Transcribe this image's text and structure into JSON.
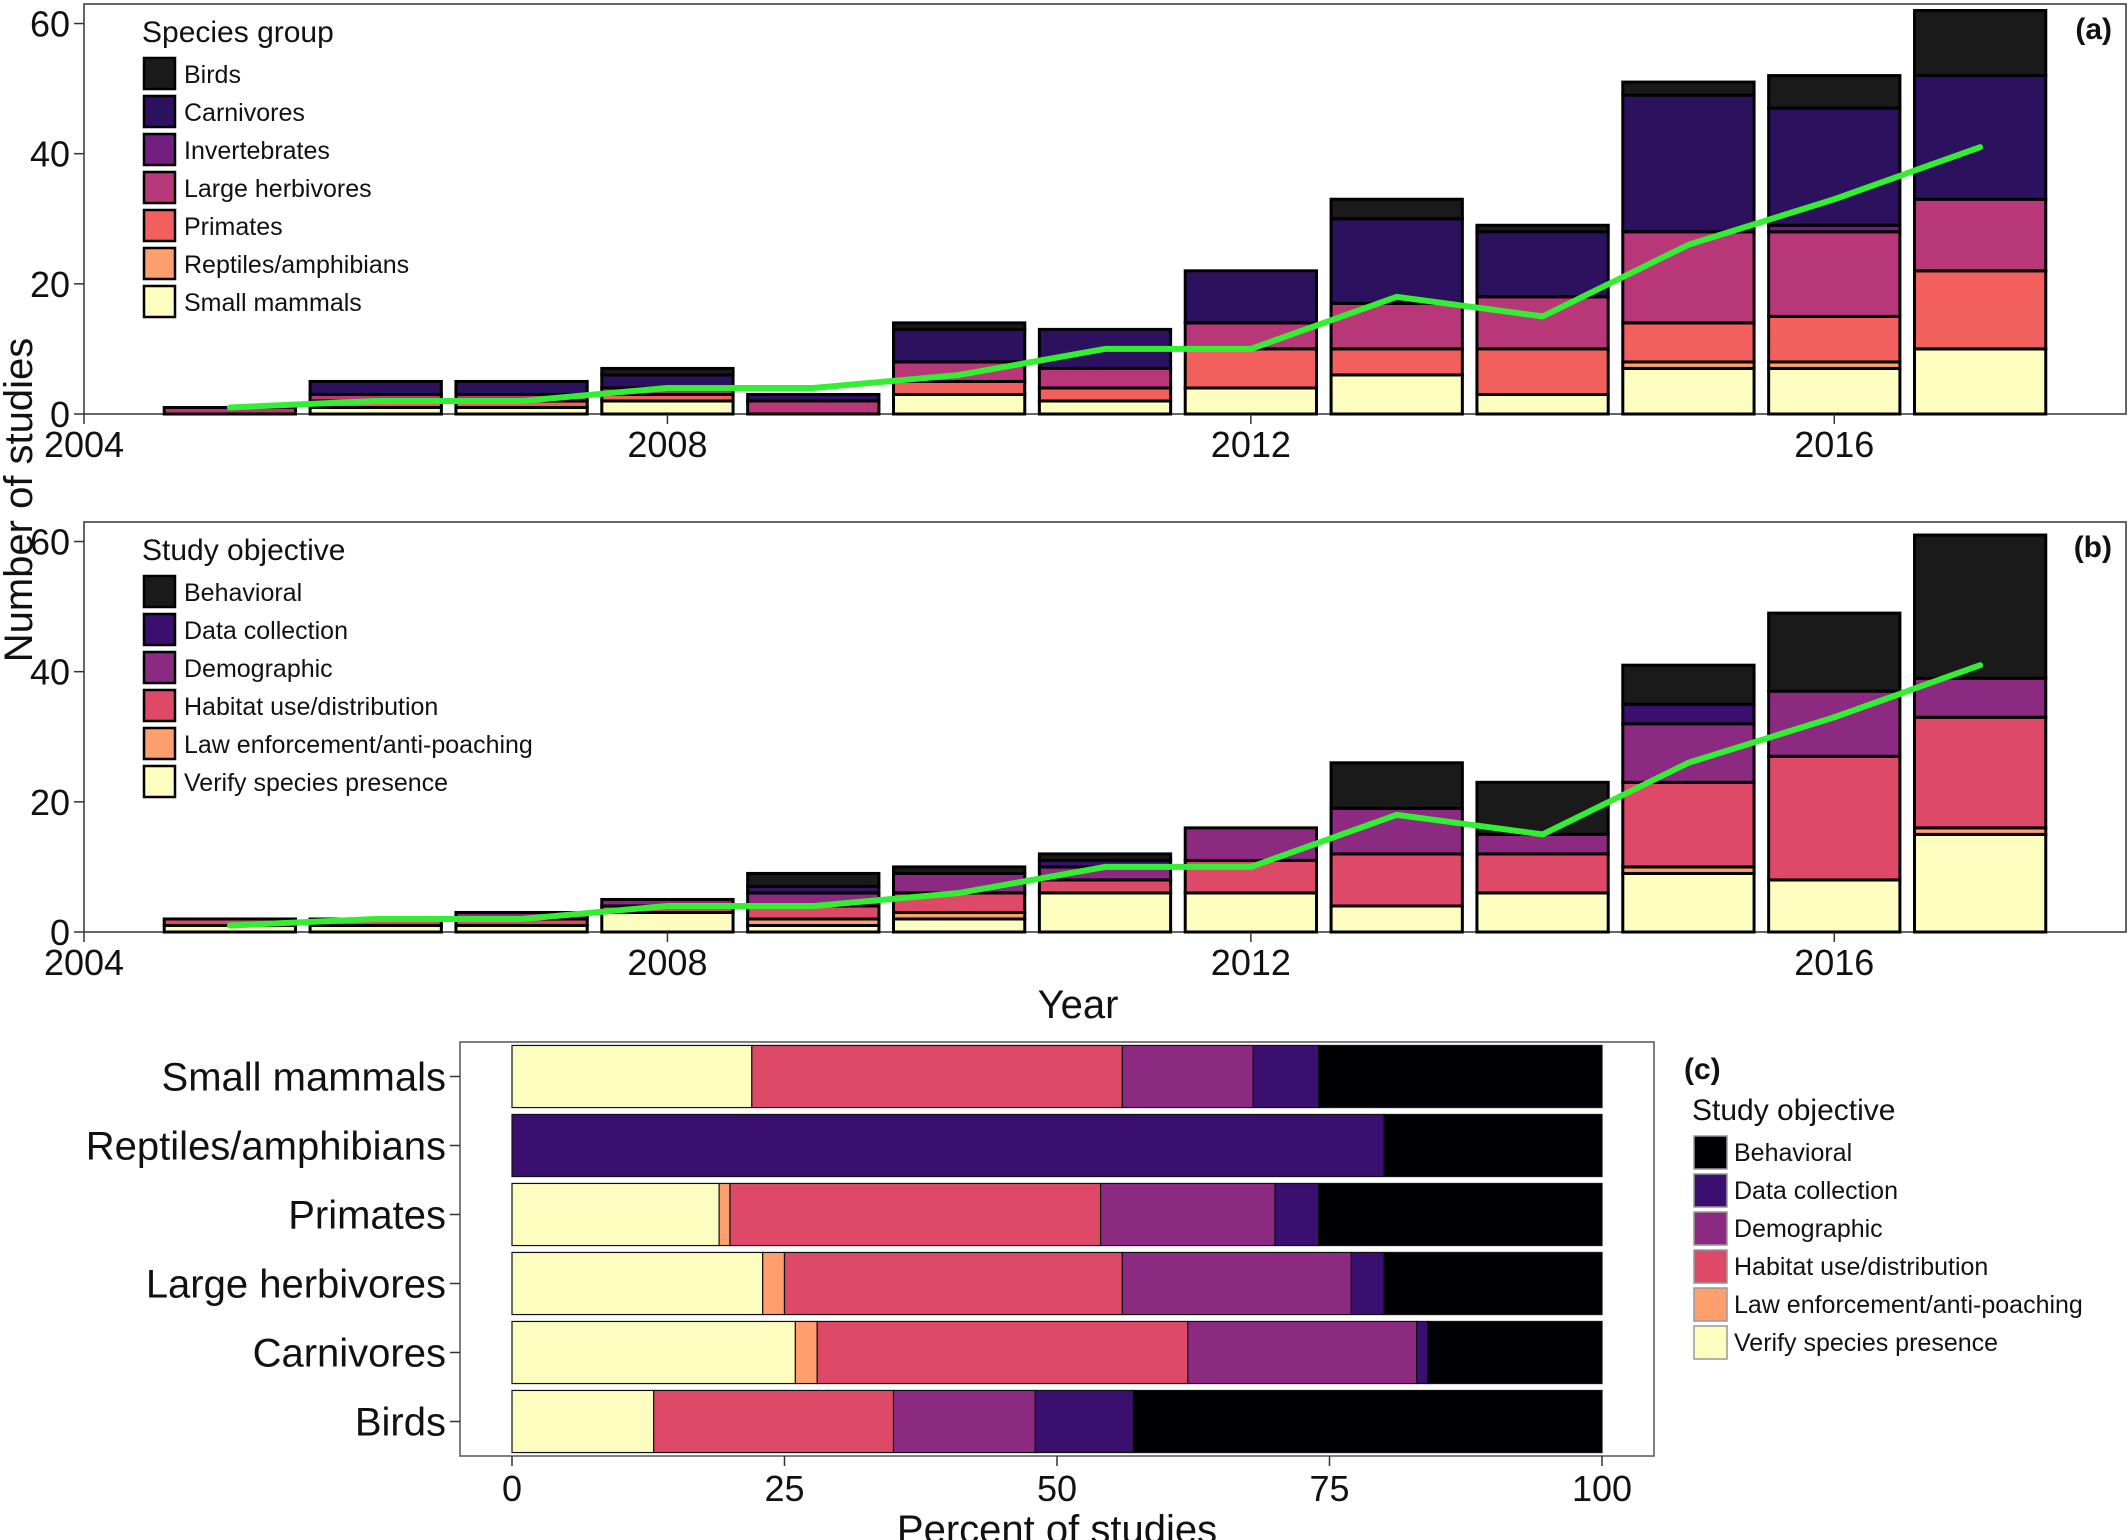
{
  "figure": {
    "shared_ylabel": "Number of studies",
    "shared_xlabel": "Year"
  },
  "chart_data": [
    {
      "panel": "(a)",
      "type": "bar",
      "stacked": true,
      "xlabel": "Year",
      "ylabel": "Number of studies",
      "xlim": [
        2004,
        2018
      ],
      "ylim": [
        0,
        63
      ],
      "xticks": [
        2004,
        2008,
        2012,
        2016
      ],
      "yticks": [
        0,
        20,
        40,
        60
      ],
      "legend_title": "Species group",
      "legend_position": "top-left",
      "categories": [
        2005,
        2006,
        2007,
        2008,
        2009,
        2010,
        2011,
        2012,
        2013,
        2014,
        2015,
        2016,
        2017
      ],
      "series": [
        {
          "name": "Small mammals",
          "color": "#FCFDBF",
          "values": [
            0,
            1,
            1,
            2,
            0,
            3,
            2,
            4,
            6,
            3,
            7,
            7,
            10
          ]
        },
        {
          "name": "Reptiles/amphibians",
          "color": "#FE9F6D",
          "values": [
            0,
            0,
            0,
            0,
            0,
            0,
            0,
            0,
            0,
            0,
            1,
            1,
            0
          ]
        },
        {
          "name": "Primates",
          "color": "#F1605D",
          "values": [
            0,
            1,
            1,
            1,
            0,
            2,
            2,
            6,
            4,
            7,
            6,
            7,
            12
          ]
        },
        {
          "name": "Large herbivores",
          "color": "#B73779",
          "values": [
            1,
            1,
            1,
            1,
            2,
            3,
            3,
            4,
            7,
            8,
            14,
            13,
            11
          ]
        },
        {
          "name": "Invertebrates",
          "color": "#721F81",
          "values": [
            0,
            0,
            0,
            0,
            0,
            0,
            0,
            0,
            0,
            0,
            0,
            1,
            0
          ]
        },
        {
          "name": "Carnivores",
          "color": "#2C115F",
          "values": [
            0,
            2,
            2,
            2,
            1,
            5,
            6,
            8,
            13,
            10,
            21,
            18,
            19
          ]
        },
        {
          "name": "Birds",
          "color": "#1A1A1A",
          "values": [
            0,
            0,
            0,
            1,
            0,
            1,
            0,
            0,
            3,
            1,
            2,
            5,
            10
          ]
        }
      ],
      "trend_line": {
        "color": "#33EE33",
        "x": [
          2005,
          2006,
          2007,
          2008,
          2009,
          2010,
          2011,
          2012,
          2013,
          2014,
          2015,
          2016,
          2017
        ],
        "y": [
          1,
          2,
          2,
          4,
          4,
          6,
          10,
          10,
          18,
          15,
          26,
          33,
          41
        ]
      }
    },
    {
      "panel": "(b)",
      "type": "bar",
      "stacked": true,
      "xlabel": "Year",
      "ylabel": "Number of studies",
      "xlim": [
        2004,
        2018
      ],
      "ylim": [
        0,
        63
      ],
      "xticks": [
        2004,
        2008,
        2012,
        2016
      ],
      "yticks": [
        0,
        20,
        40,
        60
      ],
      "legend_title": "Study objective",
      "legend_position": "top-left",
      "categories": [
        2005,
        2006,
        2007,
        2008,
        2009,
        2010,
        2011,
        2012,
        2013,
        2014,
        2015,
        2016,
        2017
      ],
      "series": [
        {
          "name": "Verify species presence",
          "color": "#FCFDBF",
          "values": [
            1,
            1,
            1,
            3,
            1,
            2,
            6,
            6,
            4,
            6,
            9,
            8,
            15
          ]
        },
        {
          "name": "Law enforcement/anti-poaching",
          "color": "#FE9F6D",
          "values": [
            0,
            0,
            0,
            0,
            1,
            1,
            0,
            0,
            0,
            0,
            1,
            0,
            1
          ]
        },
        {
          "name": "Habitat use/distribution",
          "color": "#DE4968",
          "values": [
            1,
            1,
            1,
            1,
            2,
            3,
            2,
            5,
            8,
            6,
            13,
            19,
            17
          ]
        },
        {
          "name": "Demographic",
          "color": "#8C2981",
          "values": [
            0,
            0,
            1,
            1,
            2,
            3,
            2,
            5,
            7,
            3,
            9,
            10,
            6
          ]
        },
        {
          "name": "Data collection",
          "color": "#3B0F70",
          "values": [
            0,
            0,
            0,
            0,
            1,
            0,
            1,
            0,
            0,
            0,
            3,
            0,
            0
          ]
        },
        {
          "name": "Behavioral",
          "color": "#1A1A1A",
          "values": [
            0,
            0,
            0,
            0,
            2,
            1,
            1,
            0,
            7,
            8,
            6,
            12,
            22
          ]
        }
      ],
      "trend_line": {
        "color": "#33EE33",
        "x": [
          2005,
          2006,
          2007,
          2008,
          2009,
          2010,
          2011,
          2012,
          2013,
          2014,
          2015,
          2016,
          2017
        ],
        "y": [
          1,
          2,
          2,
          4,
          4,
          6,
          10,
          10,
          18,
          15,
          26,
          33,
          41
        ]
      }
    },
    {
      "panel": "(c)",
      "type": "bar",
      "stacked": true,
      "orientation": "horizontal",
      "xlabel": "Percent of studies",
      "ylabel": "",
      "xlim": [
        0,
        100
      ],
      "xticks": [
        0,
        25,
        50,
        75,
        100
      ],
      "legend_title": "Study objective",
      "legend_position": "right",
      "categories": [
        "Small mammals",
        "Reptiles/amphibians",
        "Primates",
        "Large herbivores",
        "Carnivores",
        "Birds"
      ],
      "series": [
        {
          "name": "Verify species presence",
          "color": "#FCFDBF",
          "values": [
            22,
            0,
            19,
            23,
            26,
            13
          ]
        },
        {
          "name": "Law enforcement/anti-poaching",
          "color": "#FE9F6D",
          "values": [
            0,
            0,
            1,
            2,
            2,
            0
          ]
        },
        {
          "name": "Habitat use/distribution",
          "color": "#DE4968",
          "values": [
            34,
            0,
            34,
            31,
            34,
            22
          ]
        },
        {
          "name": "Demographic",
          "color": "#8C2981",
          "values": [
            12,
            0,
            16,
            21,
            21,
            13
          ]
        },
        {
          "name": "Data collection",
          "color": "#3B0F70",
          "values": [
            6,
            80,
            4,
            3,
            1,
            9
          ]
        },
        {
          "name": "Behavioral",
          "color": "#000004",
          "values": [
            26,
            20,
            26,
            20,
            16,
            43
          ]
        }
      ],
      "legend_order": [
        "Behavioral",
        "Data collection",
        "Demographic",
        "Habitat use/distribution",
        "Law enforcement/anti-poaching",
        "Verify species presence"
      ]
    }
  ]
}
